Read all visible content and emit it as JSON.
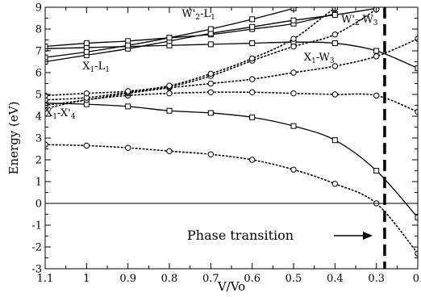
{
  "chart_data": {
    "type": "line",
    "xlabel": "V/Vo",
    "ylabel": "Energy (eV)",
    "xlim": [
      1.1,
      0.2
    ],
    "x_reversed": true,
    "ylim": [
      -3,
      9
    ],
    "xticks": [
      1.1,
      1.0,
      0.9,
      0.8,
      0.7,
      0.6,
      0.5,
      0.4,
      0.3,
      0.2
    ],
    "xtick_labels": [
      "1.1",
      "1",
      "0.9",
      "0.8",
      "0.7",
      "0.6",
      "0.5",
      "0.4",
      "0.3",
      "0."
    ],
    "yticks": [
      -3,
      -2,
      -1,
      0,
      1,
      2,
      3,
      4,
      5,
      6,
      7,
      8,
      9
    ],
    "ytick_labels": [
      "-3",
      "-2",
      "-1",
      "0",
      "1",
      "2",
      "3",
      "4",
      "5",
      "6",
      "7",
      "8",
      "9"
    ],
    "zero_line": 0,
    "phase_transition_x": 0.28,
    "series": [
      {
        "style": "solid",
        "marker": "square",
        "x": [
          1.1,
          1.0,
          0.9,
          0.8,
          0.7,
          0.6,
          0.5,
          0.4,
          0.3,
          0.2
        ],
        "y": [
          4.6,
          4.55,
          4.45,
          4.25,
          4.15,
          3.95,
          3.55,
          2.9,
          1.5,
          -0.65
        ]
      },
      {
        "style": "solid",
        "marker": "square",
        "x": [
          1.1,
          1.0,
          0.9,
          0.8,
          0.7,
          0.6,
          0.5,
          0.4,
          0.3,
          0.2
        ],
        "y": [
          7.1,
          7.15,
          7.2,
          7.25,
          7.3,
          7.35,
          7.4,
          7.35,
          7.0,
          6.2
        ]
      },
      {
        "style": "solid",
        "marker": "square",
        "x": [
          1.1,
          1.0,
          0.9,
          0.8,
          0.7,
          0.6,
          0.5,
          0.4
        ],
        "y": [
          7.2,
          7.35,
          7.45,
          7.6,
          7.75,
          8.0,
          8.25,
          8.7
        ]
      },
      {
        "style": "solid",
        "marker": "square",
        "x": [
          1.1,
          1.0,
          0.9,
          0.8,
          0.7,
          0.6,
          0.5,
          0.4,
          0.3
        ],
        "y": [
          6.5,
          6.8,
          7.1,
          7.45,
          7.8,
          8.1,
          8.4,
          8.65,
          8.95
        ]
      },
      {
        "style": "solid",
        "marker": "square",
        "x": [
          1.1,
          1.0,
          0.9,
          0.8,
          0.7,
          0.6,
          0.5,
          0.45
        ],
        "y": [
          6.7,
          6.95,
          7.25,
          7.6,
          8.0,
          8.45,
          8.95,
          9.2
        ]
      },
      {
        "style": "dotted",
        "marker": "circle",
        "x": [
          1.1,
          1.0,
          0.9,
          0.8,
          0.7,
          0.6,
          0.5,
          0.4,
          0.3,
          0.2
        ],
        "y": [
          2.7,
          2.65,
          2.55,
          2.4,
          2.25,
          2.0,
          1.55,
          0.9,
          0.0,
          -2.3
        ]
      },
      {
        "style": "dotted",
        "marker": "circle",
        "x": [
          1.1,
          1.0,
          0.9,
          0.8,
          0.7,
          0.6,
          0.5,
          0.4,
          0.3,
          0.2
        ],
        "y": [
          4.35,
          4.75,
          4.95,
          5.05,
          5.1,
          5.1,
          5.05,
          5.0,
          4.95,
          4.2
        ]
      },
      {
        "style": "dotted",
        "marker": "circle",
        "x": [
          1.1,
          1.0,
          0.9,
          0.8,
          0.7,
          0.6,
          0.5,
          0.4,
          0.3,
          0.2
        ],
        "y": [
          4.5,
          4.75,
          5.05,
          5.3,
          5.5,
          5.7,
          6.0,
          6.3,
          6.75,
          7.55
        ]
      },
      {
        "style": "dotted",
        "marker": "circle",
        "x": [
          1.1,
          1.0,
          0.9,
          0.8,
          0.7,
          0.6,
          0.5,
          0.4,
          0.3
        ],
        "y": [
          4.75,
          4.85,
          5.1,
          5.35,
          5.85,
          6.55,
          7.2,
          7.75,
          8.9
        ]
      },
      {
        "style": "dotted",
        "marker": "circle",
        "x": [
          1.1,
          1.0,
          0.9,
          0.8,
          0.7,
          0.6,
          0.5,
          0.4,
          0.35
        ],
        "y": [
          4.95,
          5.05,
          5.15,
          5.4,
          5.95,
          6.65,
          7.55,
          8.95,
          9.3
        ]
      }
    ],
    "annotations": [
      {
        "main": "W'",
        "sub": "2",
        "mid": "-L",
        "sub2": "1",
        "x": 0.77,
        "y": 8.55
      },
      {
        "main": "W'",
        "sub": "2",
        "mid": "-W",
        "sub2": "3",
        "x": 0.385,
        "y": 8.3
      },
      {
        "main": "X",
        "sub": "1",
        "mid": "-L",
        "sub2": "1",
        "x": 1.01,
        "y": 6.15
      },
      {
        "main": "X",
        "sub": "1",
        "mid": "-W",
        "sub2": "3",
        "x": 0.475,
        "y": 6.55
      },
      {
        "main": "X",
        "sub": "1",
        "mid": "-X'",
        "sub2": "4",
        "x": 1.1,
        "y": 4.0
      }
    ],
    "phase_label": "Phase transition"
  }
}
